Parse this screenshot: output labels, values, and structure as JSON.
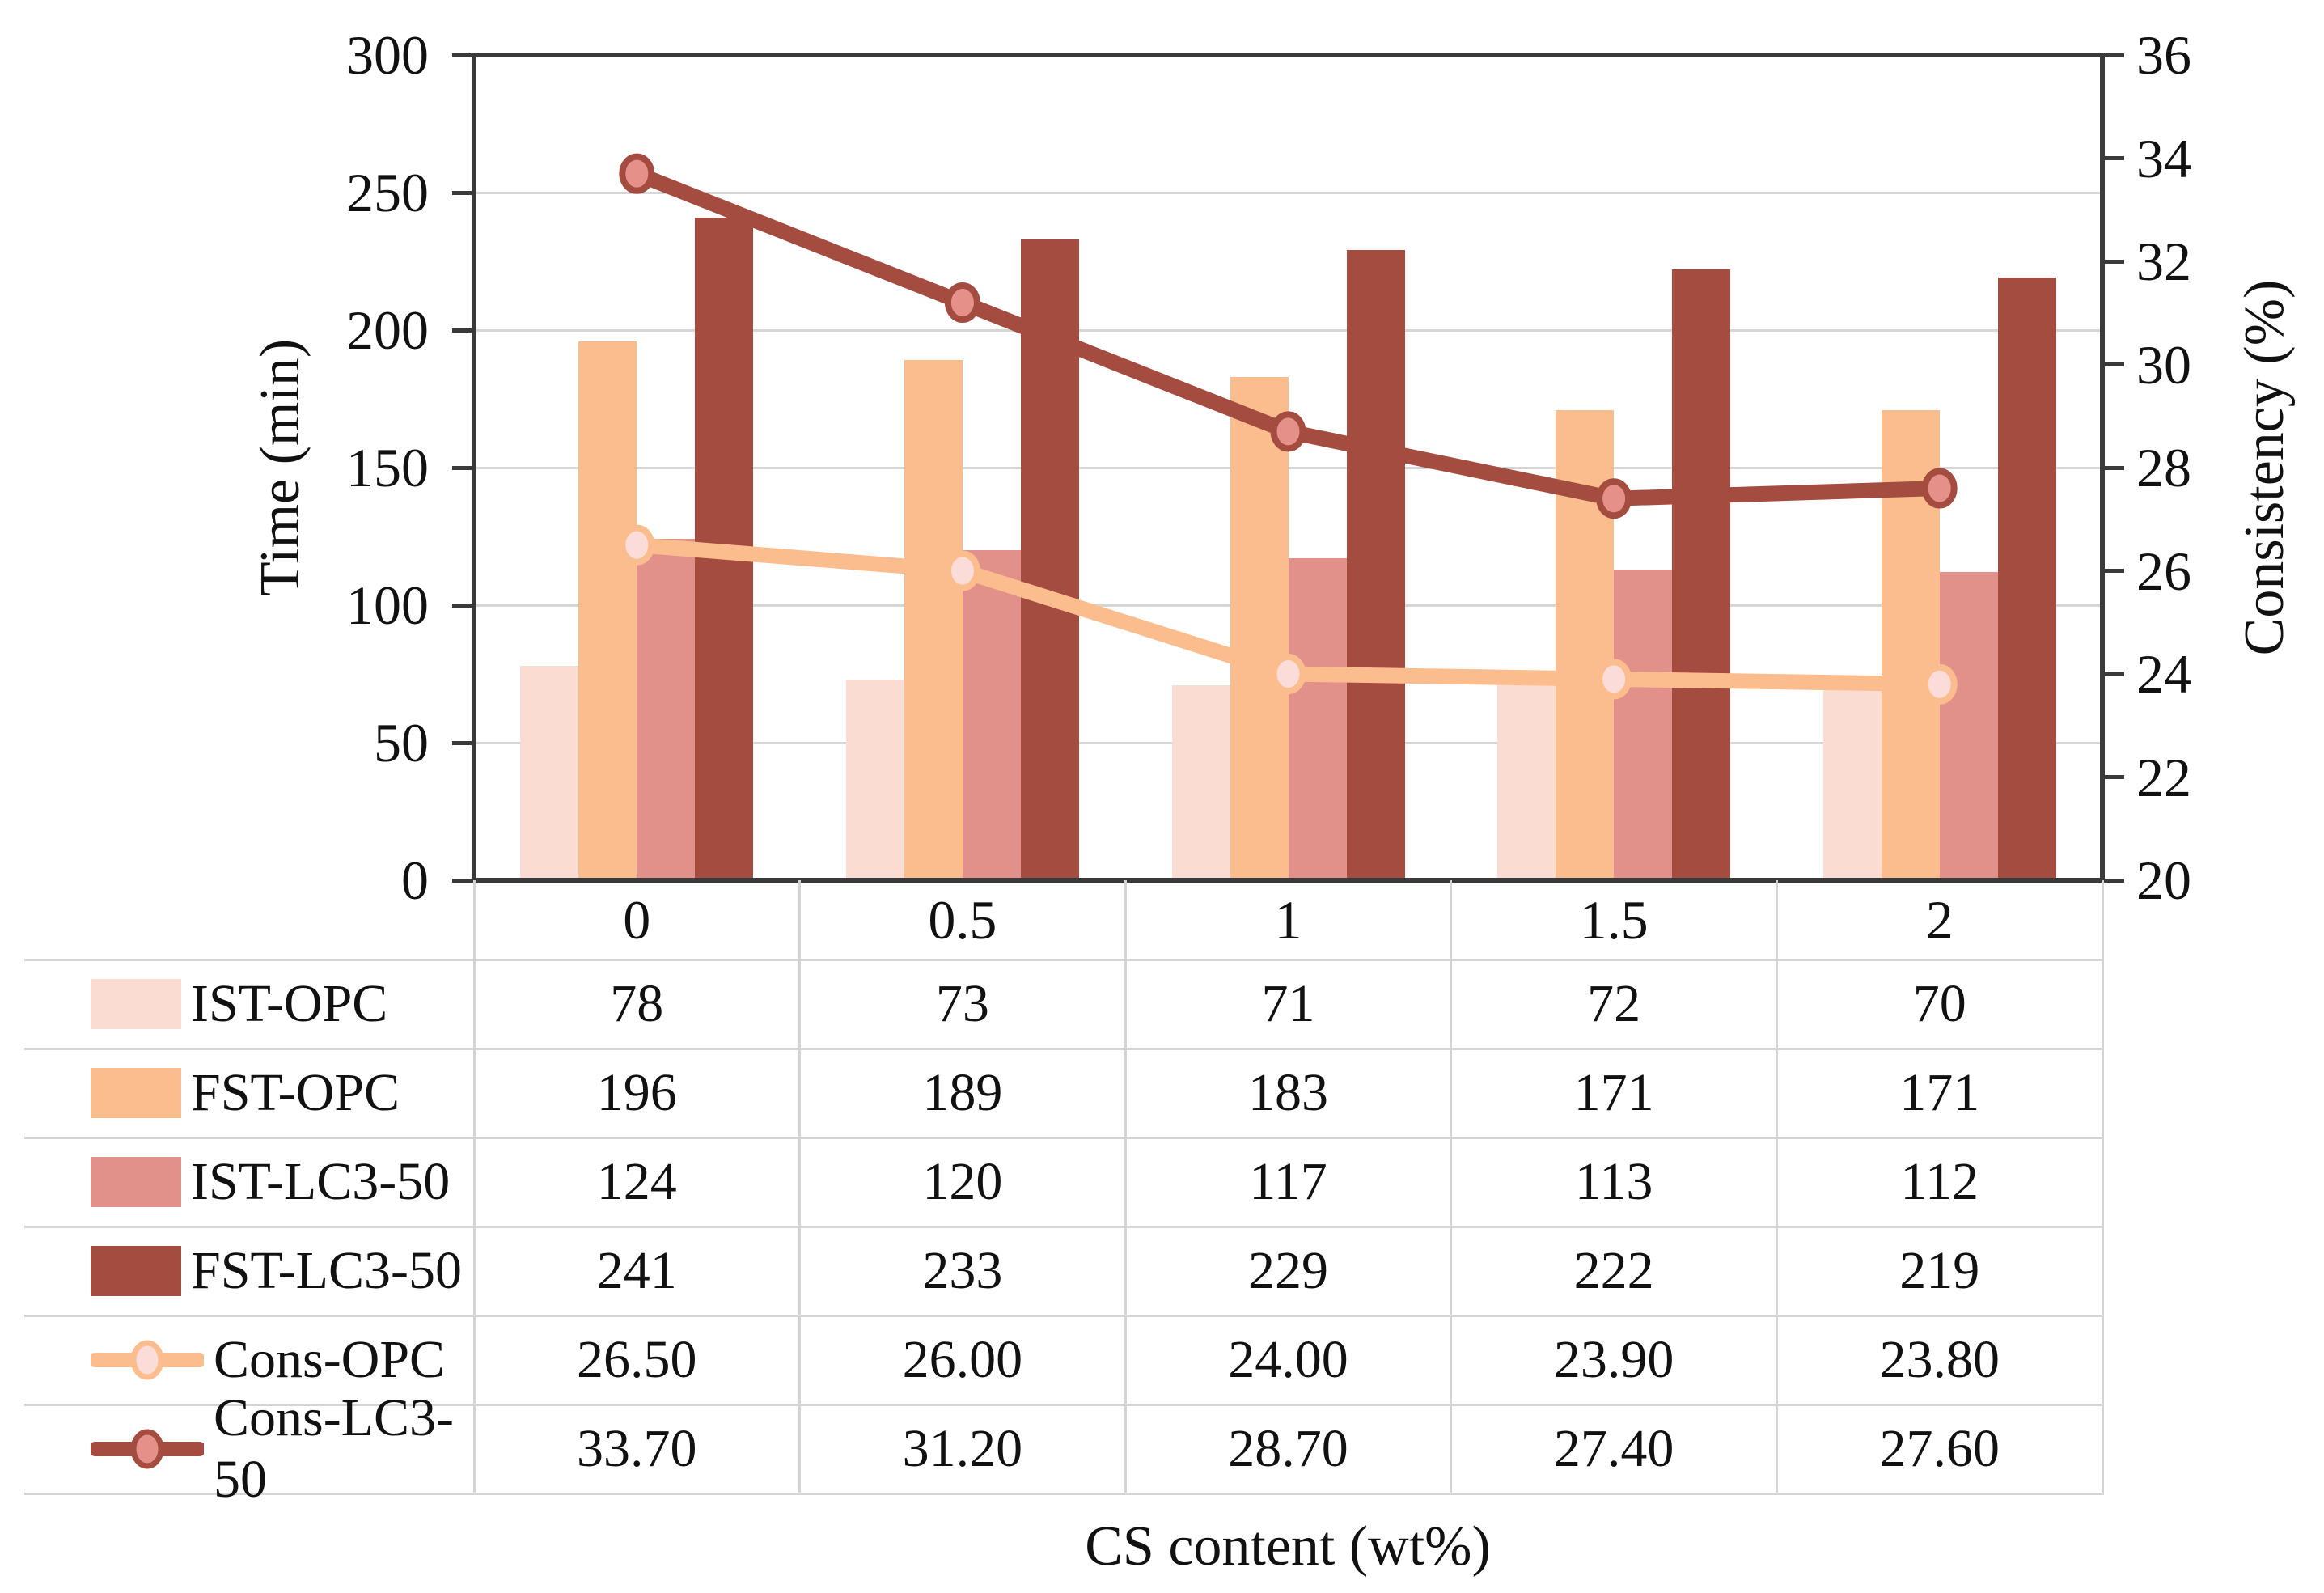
{
  "chart_data": {
    "type": "bar+line",
    "categories": [
      "0",
      "0.5",
      "1",
      "1.5",
      "2"
    ],
    "xlabel": "CS content (wt%)",
    "left_axis": {
      "label": "Time (min)",
      "min": 0,
      "max": 300,
      "step": 50
    },
    "right_axis": {
      "label": "Consistency (%)",
      "min": 20,
      "max": 36,
      "step": 2
    },
    "legend_position": "table-left-column",
    "grid": {
      "horizontal_majors": true
    },
    "bar_series": [
      {
        "name": "IST-OPC",
        "color": "#fbdcd3",
        "values": [
          78,
          73,
          71,
          72,
          70
        ],
        "display": [
          "78",
          "73",
          "71",
          "72",
          "70"
        ]
      },
      {
        "name": "FST-OPC",
        "color": "#fcbd8e",
        "values": [
          196,
          189,
          183,
          171,
          171
        ],
        "display": [
          "196",
          "189",
          "183",
          "171",
          "171"
        ]
      },
      {
        "name": "IST-LC3-50",
        "color": "#e2918a",
        "values": [
          124,
          120,
          117,
          113,
          112
        ],
        "display": [
          "124",
          "120",
          "117",
          "113",
          "112"
        ]
      },
      {
        "name": "FST-LC3-50",
        "color": "#a54c41",
        "values": [
          241,
          233,
          229,
          222,
          219
        ],
        "display": [
          "241",
          "233",
          "229",
          "222",
          "219"
        ]
      }
    ],
    "line_series": [
      {
        "name": "Cons-OPC",
        "axis": "right",
        "line_color": "#fcbd8e",
        "marker_fill": "#fbdcd8",
        "values": [
          26.5,
          26.0,
          24.0,
          23.9,
          23.8
        ],
        "display": [
          "26.50",
          "26.00",
          "24.00",
          "23.90",
          "23.80"
        ]
      },
      {
        "name": "Cons-LC3-50",
        "axis": "right",
        "line_color": "#a54c41",
        "marker_fill": "#e59189",
        "values": [
          33.7,
          31.2,
          28.7,
          27.4,
          27.6
        ],
        "display": [
          "33.70",
          "31.20",
          "28.70",
          "27.40",
          "27.60"
        ]
      }
    ]
  },
  "colors": {
    "spine": "#3a3a3a",
    "grid": "#d6d6d6",
    "table_border": "#d4d4d4",
    "text": "#111111",
    "background": "#ffffff"
  }
}
